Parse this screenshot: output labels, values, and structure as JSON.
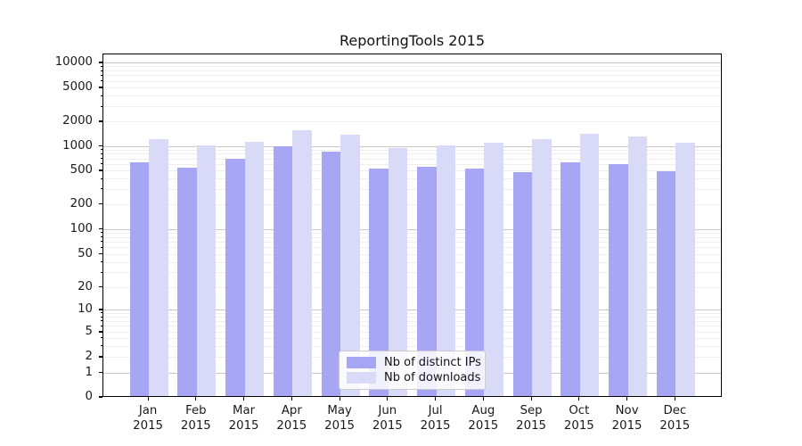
{
  "title": "ReportingTools 2015",
  "colors": {
    "distinct_ips": "#a6a6f5",
    "downloads": "#d9d9f8",
    "grid_major": "#c8c8c8",
    "grid_minor": "#efefef",
    "axis": "#000000"
  },
  "legend": {
    "items": [
      {
        "label": "Nb of distinct IPs",
        "color": "#a6a6f5"
      },
      {
        "label": "Nb of downloads",
        "color": "#d9d9f8"
      }
    ]
  },
  "y_axis": {
    "tick_labels": [
      "0",
      "1",
      "2",
      "5",
      "10",
      "20",
      "50",
      "100",
      "200",
      "500",
      "1000",
      "2000",
      "5000",
      "10000"
    ]
  },
  "x_axis": {
    "year_line": "2015",
    "months": [
      "Jan",
      "Feb",
      "Mar",
      "Apr",
      "May",
      "Jun",
      "Jul",
      "Aug",
      "Sep",
      "Oct",
      "Nov",
      "Dec"
    ]
  },
  "chart_data": {
    "type": "bar",
    "title": "ReportingTools 2015",
    "xlabel": "",
    "ylabel": "",
    "yscale": "symlog",
    "yticks": [
      0,
      1,
      2,
      5,
      10,
      20,
      50,
      100,
      200,
      500,
      1000,
      2000,
      5000,
      10000
    ],
    "ylim": [
      0,
      11500
    ],
    "grid": true,
    "legend_position": "inside-bottom-center",
    "categories": [
      "Jan 2015",
      "Feb 2015",
      "Mar 2015",
      "Apr 2015",
      "May 2015",
      "Jun 2015",
      "Jul 2015",
      "Aug 2015",
      "Sep 2015",
      "Oct 2015",
      "Nov 2015",
      "Dec 2015"
    ],
    "series": [
      {
        "name": "Nb of distinct IPs",
        "color": "#a6a6f5",
        "values": [
          630,
          540,
          690,
          980,
          850,
          525,
          555,
          530,
          475,
          620,
          590,
          490
        ]
      },
      {
        "name": "Nb of downloads",
        "color": "#d9d9f8",
        "values": [
          1200,
          1010,
          1130,
          1560,
          1380,
          950,
          1005,
          1100,
          1200,
          1390,
          1320,
          1100
        ]
      }
    ]
  }
}
